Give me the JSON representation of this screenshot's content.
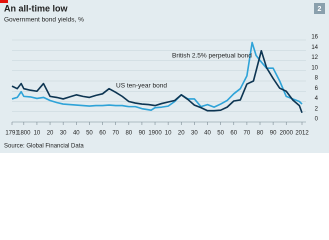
{
  "badge": "2",
  "chart_data": {
    "type": "line",
    "title": "An all-time low",
    "subtitle": "Government bond yields, %",
    "source": "Source: Global Financial Data",
    "annotations": [
      "British 2.5% perpetual bond",
      "US ten-year bond"
    ],
    "xlim": [
      1791,
      2012
    ],
    "ylim": [
      0,
      16
    ],
    "grid": true,
    "yaxis_side": "right",
    "xticks": [
      1791,
      1800,
      {
        "value": 1810,
        "label": "10"
      },
      {
        "value": 1820,
        "label": "20"
      },
      {
        "value": 1830,
        "label": "30"
      },
      {
        "value": 1840,
        "label": "40"
      },
      {
        "value": 1850,
        "label": "50"
      },
      {
        "value": 1860,
        "label": "60"
      },
      {
        "value": 1870,
        "label": "70"
      },
      {
        "value": 1880,
        "label": "80"
      },
      {
        "value": 1890,
        "label": "90"
      },
      1900,
      {
        "value": 1910,
        "label": "10"
      },
      {
        "value": 1920,
        "label": "20"
      },
      {
        "value": 1930,
        "label": "30"
      },
      {
        "value": 1940,
        "label": "40"
      },
      {
        "value": 1950,
        "label": "50"
      },
      {
        "value": 1960,
        "label": "60"
      },
      {
        "value": 1970,
        "label": "70"
      },
      {
        "value": 1980,
        "label": "80"
      },
      {
        "value": 1990,
        "label": "90"
      },
      2000,
      2012
    ],
    "yticks": [
      0,
      2,
      4,
      6,
      8,
      10,
      12,
      14,
      16
    ],
    "series": [
      {
        "name": "British 2.5% perpetual bond",
        "color": "#2ea3d8",
        "x": [
          1791,
          1795,
          1798,
          1800,
          1805,
          1810,
          1815,
          1820,
          1825,
          1830,
          1835,
          1840,
          1845,
          1850,
          1855,
          1860,
          1865,
          1870,
          1875,
          1880,
          1885,
          1890,
          1897,
          1900,
          1905,
          1910,
          1915,
          1920,
          1925,
          1930,
          1935,
          1940,
          1945,
          1950,
          1955,
          1960,
          1965,
          1970,
          1974,
          1977,
          1980,
          1985,
          1990,
          1995,
          2000,
          2005,
          2010,
          2012
        ],
        "values": [
          4.5,
          4.8,
          5.9,
          5.0,
          4.9,
          4.6,
          4.8,
          4.2,
          3.8,
          3.5,
          3.4,
          3.3,
          3.2,
          3.1,
          3.2,
          3.2,
          3.3,
          3.2,
          3.2,
          3.0,
          3.0,
          2.6,
          2.3,
          2.8,
          2.9,
          3.1,
          4.0,
          5.3,
          4.5,
          4.5,
          3.0,
          3.4,
          2.9,
          3.5,
          4.2,
          5.5,
          6.5,
          9.0,
          15.5,
          13.0,
          12.0,
          10.5,
          10.5,
          8.0,
          5.0,
          4.5,
          4.0,
          3.5
        ]
      },
      {
        "name": "US ten-year bond",
        "color": "#0d3552",
        "x": [
          1791,
          1795,
          1798,
          1800,
          1805,
          1810,
          1815,
          1820,
          1825,
          1830,
          1835,
          1840,
          1845,
          1850,
          1855,
          1860,
          1865,
          1870,
          1875,
          1880,
          1885,
          1890,
          1895,
          1900,
          1905,
          1910,
          1915,
          1920,
          1925,
          1930,
          1935,
          1940,
          1945,
          1950,
          1955,
          1960,
          1965,
          1970,
          1975,
          1981,
          1985,
          1990,
          1995,
          2000,
          2005,
          2010,
          2012
        ],
        "values": [
          7.0,
          6.5,
          7.5,
          6.5,
          6.2,
          6.0,
          7.5,
          5.0,
          4.8,
          4.5,
          4.9,
          5.3,
          5.0,
          4.8,
          5.2,
          5.5,
          6.5,
          5.8,
          5.0,
          4.0,
          3.7,
          3.5,
          3.4,
          3.2,
          3.6,
          3.9,
          4.2,
          5.3,
          4.4,
          3.3,
          2.8,
          2.2,
          2.2,
          2.3,
          2.9,
          4.1,
          4.3,
          7.4,
          8.0,
          13.9,
          10.6,
          8.5,
          6.6,
          6.0,
          4.3,
          3.2,
          1.8
        ]
      }
    ]
  }
}
